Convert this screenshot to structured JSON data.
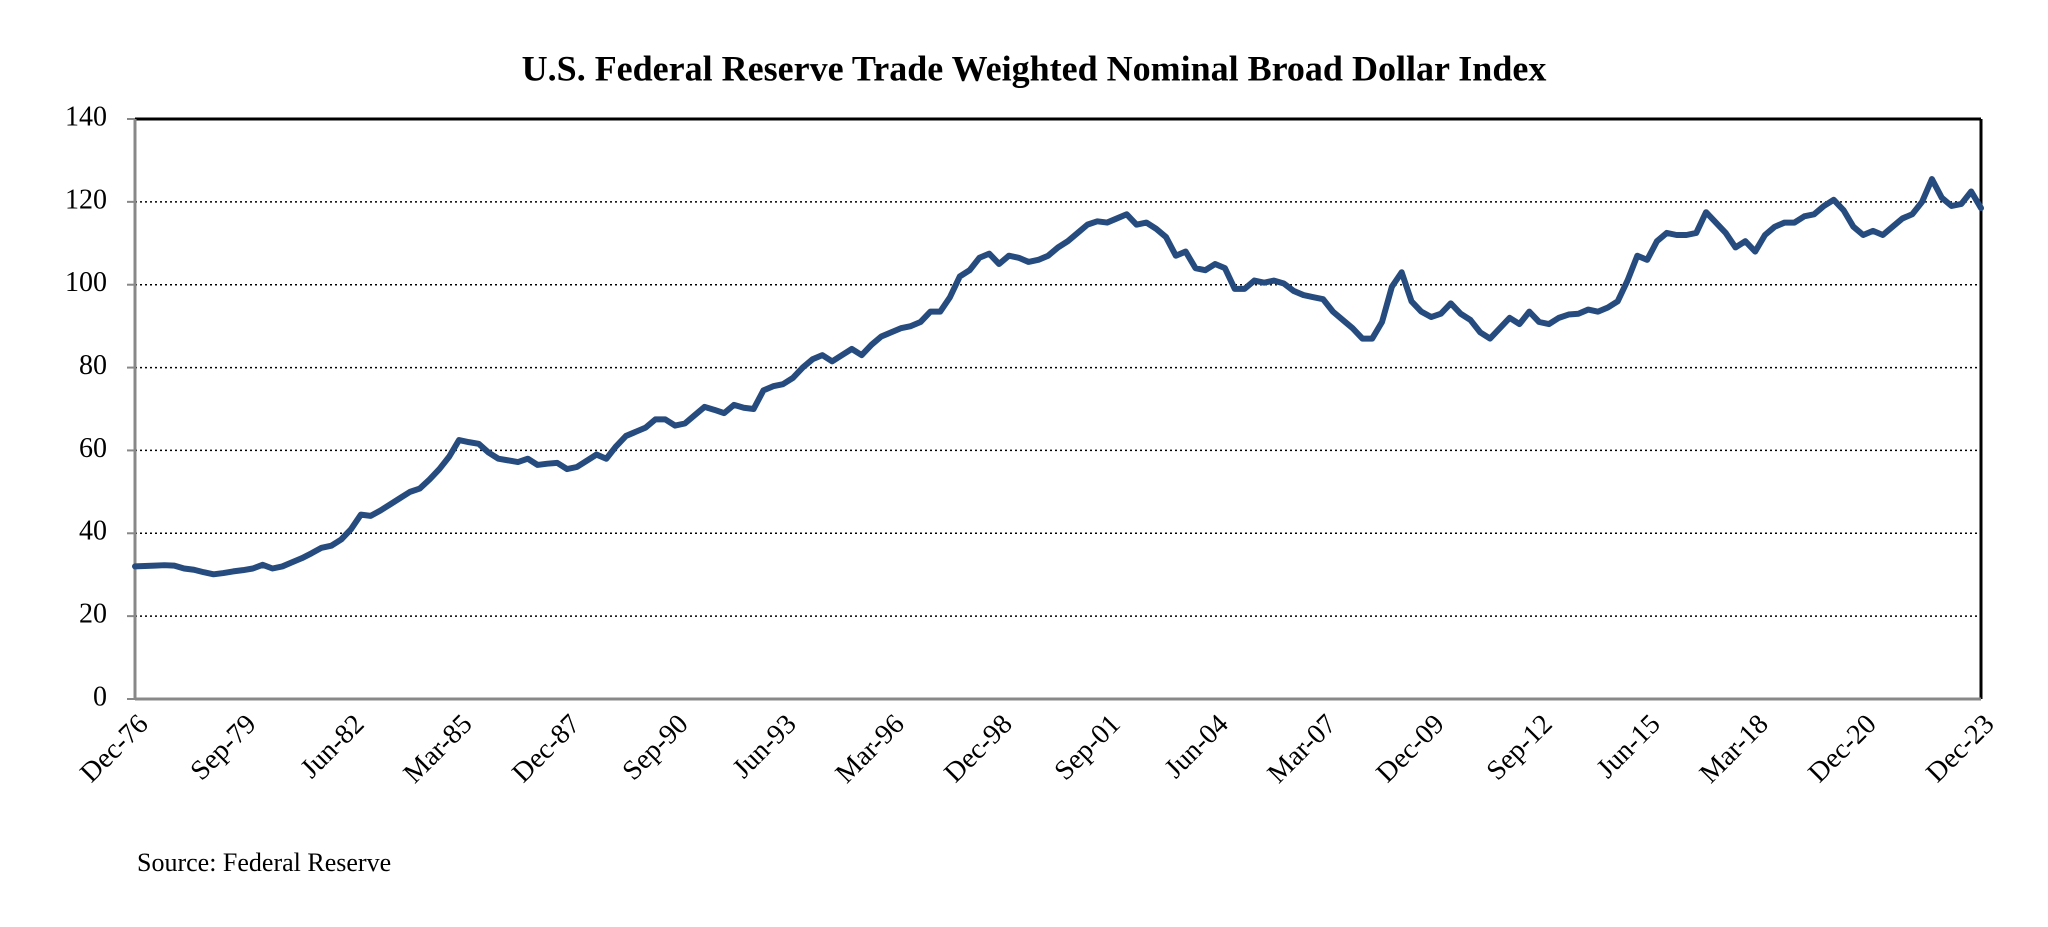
{
  "chart_data": {
    "type": "line",
    "title": "U.S. Federal Reserve Trade Weighted Nominal Broad Dollar Index",
    "source": "Source: Federal Reserve",
    "categories": [
      "Dec-76",
      null,
      null,
      null,
      null,
      null,
      null,
      null,
      null,
      null,
      null,
      "Sep-79",
      null,
      null,
      null,
      null,
      null,
      null,
      null,
      null,
      null,
      null,
      "Jun-82",
      null,
      null,
      null,
      null,
      null,
      null,
      null,
      null,
      null,
      null,
      "Mar-85",
      null,
      null,
      null,
      null,
      null,
      null,
      null,
      null,
      null,
      null,
      "Dec-87",
      null,
      null,
      null,
      null,
      null,
      null,
      null,
      null,
      null,
      null,
      "Sep-90",
      null,
      null,
      null,
      null,
      null,
      null,
      null,
      null,
      null,
      null,
      "Jun-93",
      null,
      null,
      null,
      null,
      null,
      null,
      null,
      null,
      null,
      null,
      "Mar-96",
      null,
      null,
      null,
      null,
      null,
      null,
      null,
      null,
      null,
      null,
      "Dec-98",
      null,
      null,
      null,
      null,
      null,
      null,
      null,
      null,
      null,
      null,
      "Sep-01",
      null,
      null,
      null,
      null,
      null,
      null,
      null,
      null,
      null,
      null,
      "Jun-04",
      null,
      null,
      null,
      null,
      null,
      null,
      null,
      null,
      null,
      null,
      "Mar-07",
      null,
      null,
      null,
      null,
      null,
      null,
      null,
      null,
      null,
      null,
      "Dec-09",
      null,
      null,
      null,
      null,
      null,
      null,
      null,
      null,
      null,
      null,
      "Sep-12",
      null,
      null,
      null,
      null,
      null,
      null,
      null,
      null,
      null,
      null,
      "Jun-15",
      null,
      null,
      null,
      null,
      null,
      null,
      null,
      null,
      null,
      null,
      "Mar-18",
      null,
      null,
      null,
      null,
      null,
      null,
      null,
      null,
      null,
      null,
      "Dec-20",
      null,
      null,
      null,
      null,
      null,
      null,
      null,
      null,
      null,
      null,
      null,
      "Dec-23"
    ],
    "values": [
      32,
      32.1,
      32.2,
      32.3,
      32.2,
      31.5,
      31.2,
      30.6,
      30.1,
      30.4,
      30.8,
      31.1,
      31.5,
      32.4,
      31.5,
      32,
      33,
      34,
      35.2,
      36.5,
      37,
      38.5,
      41,
      44.5,
      44.2,
      45.5,
      47,
      48.5,
      50,
      50.8,
      53,
      55.5,
      58.5,
      62.5,
      62,
      61.6,
      59.5,
      58,
      57.6,
      57.2,
      58,
      56.5,
      56.8,
      57,
      55.5,
      56,
      57.5,
      59,
      58,
      61,
      63.5,
      64.5,
      65.5,
      67.5,
      67.5,
      66,
      66.5,
      68.5,
      70.5,
      69.8,
      69,
      71,
      70.3,
      70,
      74.5,
      75.5,
      76,
      77.5,
      80,
      82,
      83,
      81.5,
      83,
      84.5,
      83,
      85.5,
      87.5,
      88.5,
      89.5,
      90,
      91,
      93.5,
      93.5,
      97,
      102,
      103.5,
      106.5,
      107.5,
      105,
      107,
      106.5,
      105.5,
      106,
      107,
      109,
      110.5,
      112.5,
      114.5,
      115.3,
      115,
      116,
      117,
      114.5,
      115,
      113.5,
      111.5,
      107,
      108,
      104,
      103.5,
      105,
      104,
      99,
      99,
      101,
      100.5,
      101,
      100.3,
      98.5,
      97.5,
      97,
      96.5,
      93.5,
      91.5,
      89.5,
      87,
      87,
      91,
      99.5,
      103,
      96,
      93.5,
      92.2,
      93,
      95.5,
      93,
      91.5,
      88.5,
      87,
      89.5,
      92,
      90.5,
      93.5,
      91,
      90.5,
      92,
      92.8,
      93,
      94,
      93.5,
      94.5,
      96,
      101,
      107,
      106,
      110.5,
      112.5,
      112,
      112,
      112.5,
      117.5,
      115,
      112.5,
      109,
      110.5,
      108,
      112,
      114,
      115,
      115,
      116.5,
      117,
      119,
      120.5,
      118,
      114,
      112,
      113,
      112,
      114,
      116,
      117,
      120,
      125.5,
      121,
      119,
      119.5,
      122.5,
      118.5
    ],
    "color": "#264b7e",
    "ylim": [
      0,
      140
    ],
    "yticks": [
      0,
      20,
      40,
      60,
      80,
      100,
      120,
      140
    ],
    "grid": true
  }
}
